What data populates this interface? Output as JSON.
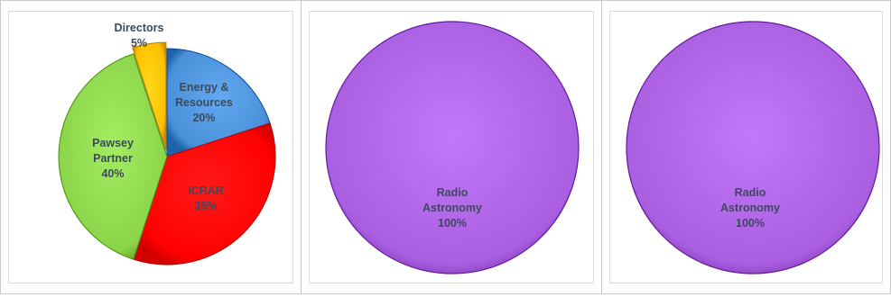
{
  "chart_data": [
    {
      "type": "pie",
      "title": "",
      "slices": [
        {
          "label": "Directors",
          "value": 5,
          "display": "5%",
          "color": "#ffc000"
        },
        {
          "label": "Energy & Resources",
          "value": 20,
          "display": "20%",
          "color": "#4a90d9"
        },
        {
          "label": "ICRAR",
          "value": 35,
          "display": "35%",
          "color": "#ff0000"
        },
        {
          "label": "Pawsey Partner",
          "value": 40,
          "display": "40%",
          "color": "#8bd44a"
        }
      ]
    },
    {
      "type": "pie",
      "title": "",
      "slices": [
        {
          "label": "Radio Astronomy",
          "value": 100,
          "display": "100%",
          "color": "#a95fe0"
        }
      ]
    },
    {
      "type": "pie",
      "title": "",
      "slices": [
        {
          "label": "Radio Astronomy",
          "value": 100,
          "display": "100%",
          "color": "#a95fe0"
        }
      ]
    }
  ],
  "label_color": "#3b4a5c"
}
